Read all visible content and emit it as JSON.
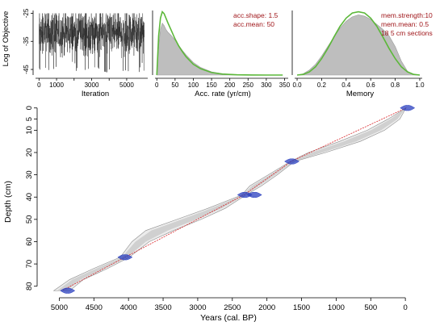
{
  "colors": {
    "trace": "#2d2d2d",
    "histogram": "#bebebe",
    "prior": "#5cb83a",
    "median": "#d9262a",
    "dates": "#2a3fbf",
    "note": "#a0181c"
  },
  "chart_data": [
    {
      "type": "line",
      "panel": "iterations",
      "ylabel": "Log of Objective",
      "xlabel": "Iteration",
      "xlim": [
        -200,
        6200
      ],
      "ylim": [
        -47,
        -24
      ],
      "xticks": [
        0,
        1000,
        2000,
        3000,
        4000,
        5000
      ],
      "xtick_labels": [
        "0",
        "1000",
        "",
        "3000",
        "",
        "5000"
      ],
      "yticks": [
        -25,
        -35,
        -45
      ],
      "ytick_labels": [
        "-25",
        "-35",
        "-45"
      ],
      "series": [
        {
          "iterations": 6000,
          "mean": -32,
          "min": -46,
          "max": -25
        }
      ]
    },
    {
      "type": "area",
      "panel": "accumulation-rate",
      "xlabel": "Acc. rate (yr/cm)",
      "xlim": [
        -5,
        360
      ],
      "xticks": [
        0,
        50,
        100,
        150,
        200,
        250,
        300,
        350
      ],
      "annotations": [
        "acc.shape: 1.5",
        "acc.mean: 50"
      ],
      "posterior": {
        "x": [
          0,
          5,
          10,
          15,
          20,
          25,
          30,
          40,
          50,
          60,
          70,
          80,
          100,
          120,
          150,
          180,
          220,
          260
        ],
        "density": [
          0,
          0.45,
          0.72,
          0.82,
          0.78,
          0.72,
          0.68,
          0.62,
          0.55,
          0.47,
          0.39,
          0.32,
          0.2,
          0.12,
          0.05,
          0.02,
          0.005,
          0
        ]
      },
      "prior": {
        "x": [
          0,
          5,
          10,
          15,
          20,
          25,
          30,
          40,
          50,
          60,
          70,
          80,
          100,
          120,
          150,
          180,
          220,
          260,
          300,
          345
        ],
        "density": [
          0,
          0.62,
          0.9,
          1.0,
          0.97,
          0.9,
          0.83,
          0.7,
          0.57,
          0.46,
          0.37,
          0.29,
          0.17,
          0.1,
          0.04,
          0.015,
          0.004,
          0.001,
          0,
          0
        ]
      }
    },
    {
      "type": "area",
      "panel": "memory",
      "xlabel": "Memory",
      "xlim": [
        -0.02,
        1.02
      ],
      "xticks": [
        0,
        0.2,
        0.4,
        0.6,
        0.8,
        1.0
      ],
      "xtick_labels": [
        "0.0",
        "0.2",
        "0.4",
        "0.6",
        "0.8",
        "1.0"
      ],
      "annotations": [
        "mem.strength:10",
        "mem.mean: 0.5",
        "18 5 cm sections"
      ],
      "posterior": {
        "x": [
          0.0,
          0.05,
          0.1,
          0.15,
          0.2,
          0.25,
          0.3,
          0.35,
          0.4,
          0.45,
          0.5,
          0.55,
          0.6,
          0.65,
          0.7,
          0.75,
          0.8,
          0.85,
          0.9,
          0.95,
          1.0
        ],
        "density": [
          0,
          0.02,
          0.08,
          0.17,
          0.3,
          0.45,
          0.6,
          0.74,
          0.85,
          0.92,
          0.95,
          0.93,
          0.88,
          0.8,
          0.72,
          0.62,
          0.45,
          0.22,
          0.06,
          0.01,
          0
        ]
      },
      "prior": {
        "x": [
          0.0,
          0.05,
          0.1,
          0.15,
          0.2,
          0.25,
          0.3,
          0.35,
          0.4,
          0.45,
          0.5,
          0.55,
          0.6,
          0.65,
          0.7,
          0.75,
          0.8,
          0.85,
          0.9,
          0.95,
          1.0
        ],
        "density": [
          0,
          0.01,
          0.05,
          0.13,
          0.26,
          0.42,
          0.6,
          0.77,
          0.9,
          0.98,
          1.0,
          0.98,
          0.9,
          0.77,
          0.6,
          0.42,
          0.26,
          0.13,
          0.05,
          0.01,
          0
        ]
      }
    },
    {
      "type": "area",
      "panel": "age-depth",
      "xlabel": "Years (cal. BP)",
      "ylabel": "Depth (cm)",
      "xlim": [
        5250,
        -150
      ],
      "ylim": [
        83,
        -1
      ],
      "xticks": [
        5000,
        4500,
        4000,
        3500,
        3000,
        2500,
        2000,
        1500,
        1000,
        500,
        0
      ],
      "yticks": [
        0,
        5,
        10,
        20,
        30,
        40,
        50,
        60,
        70,
        80
      ],
      "median": {
        "depth": [
          0,
          24,
          39,
          67,
          82
        ],
        "age": [
          -10,
          1650,
          2330,
          4050,
          4960
        ]
      },
      "envelope": {
        "depth": [
          0,
          5,
          10,
          15,
          20,
          24,
          30,
          35,
          39,
          45,
          50,
          55,
          60,
          67,
          72,
          77,
          82
        ],
        "older": [
          -10,
          250,
          550,
          950,
          1400,
          1660,
          1980,
          2250,
          2360,
          2850,
          3300,
          3750,
          3950,
          4120,
          4500,
          4850,
          5080
        ],
        "younger": [
          -10,
          80,
          300,
          650,
          1150,
          1600,
          1850,
          2080,
          2300,
          2600,
          2950,
          3350,
          3700,
          3990,
          4300,
          4650,
          4850
        ]
      },
      "dated_levels": [
        {
          "depth": 0,
          "age": -30
        },
        {
          "depth": 24,
          "age": 1640
        },
        {
          "depth": 39,
          "age": 2320
        },
        {
          "depth": 39,
          "age": 2180
        },
        {
          "depth": 67,
          "age": 4050
        },
        {
          "depth": 82,
          "age": 4880
        }
      ]
    }
  ]
}
